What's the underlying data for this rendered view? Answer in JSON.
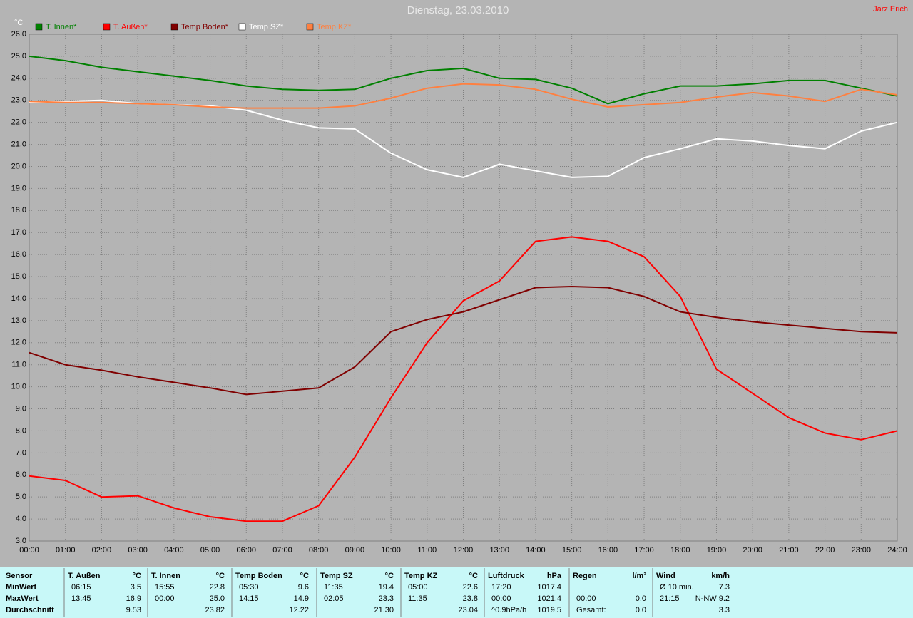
{
  "chart_data": {
    "type": "line",
    "title": "Dienstag, 23.03.2010",
    "annotation": "Jarz Erich",
    "y_label": "°C",
    "x": [
      0,
      1,
      2,
      3,
      4,
      5,
      6,
      7,
      8,
      9,
      10,
      11,
      12,
      13,
      14,
      15,
      16,
      17,
      18,
      19,
      20,
      21,
      22,
      23,
      24
    ],
    "xlim": [
      0,
      24
    ],
    "xticks": [
      {
        "value": 0,
        "label": "00:00"
      },
      {
        "value": 1,
        "label": "01:00"
      },
      {
        "value": 2,
        "label": "02:00"
      },
      {
        "value": 3,
        "label": "03:00"
      },
      {
        "value": 4,
        "label": "04:00"
      },
      {
        "value": 5,
        "label": "05:00"
      },
      {
        "value": 6,
        "label": "06:00"
      },
      {
        "value": 7,
        "label": "07:00"
      },
      {
        "value": 8,
        "label": "08:00"
      },
      {
        "value": 9,
        "label": "09:00"
      },
      {
        "value": 10,
        "label": "10:00"
      },
      {
        "value": 11,
        "label": "11:00"
      },
      {
        "value": 12,
        "label": "12:00"
      },
      {
        "value": 13,
        "label": "13:00"
      },
      {
        "value": 14,
        "label": "14:00"
      },
      {
        "value": 15,
        "label": "15:00"
      },
      {
        "value": 16,
        "label": "16:00"
      },
      {
        "value": 17,
        "label": "17:00"
      },
      {
        "value": 18,
        "label": "18:00"
      },
      {
        "value": 19,
        "label": "19:00"
      },
      {
        "value": 20,
        "label": "20:00"
      },
      {
        "value": 21,
        "label": "21:00"
      },
      {
        "value": 22,
        "label": "22:00"
      },
      {
        "value": 23,
        "label": "23:00"
      },
      {
        "value": 24,
        "label": "24:00"
      }
    ],
    "ylim": [
      3,
      26
    ],
    "yticks": [
      {
        "value": 3,
        "label": "3.0"
      },
      {
        "value": 4,
        "label": "4.0"
      },
      {
        "value": 5,
        "label": "5.0"
      },
      {
        "value": 6,
        "label": "6.0"
      },
      {
        "value": 7,
        "label": "7.0"
      },
      {
        "value": 8,
        "label": "8.0"
      },
      {
        "value": 9,
        "label": "9.0"
      },
      {
        "value": 10,
        "label": "10.0"
      },
      {
        "value": 11,
        "label": "11.0"
      },
      {
        "value": 12,
        "label": "12.0"
      },
      {
        "value": 13,
        "label": "13.0"
      },
      {
        "value": 14,
        "label": "14.0"
      },
      {
        "value": 15,
        "label": "15.0"
      },
      {
        "value": 16,
        "label": "16.0"
      },
      {
        "value": 17,
        "label": "17.0"
      },
      {
        "value": 18,
        "label": "18.0"
      },
      {
        "value": 19,
        "label": "19.0"
      },
      {
        "value": 20,
        "label": "20.0"
      },
      {
        "value": 21,
        "label": "21.0"
      },
      {
        "value": 22,
        "label": "22.0"
      },
      {
        "value": 23,
        "label": "23.0"
      },
      {
        "value": 24,
        "label": "24.0"
      },
      {
        "value": 25,
        "label": "25.0"
      },
      {
        "value": 26,
        "label": "26.0"
      }
    ],
    "grid": true,
    "series": [
      {
        "name": "T. Innen*",
        "color": "#008000",
        "values": [
          25.0,
          24.8,
          24.5,
          24.3,
          24.1,
          23.9,
          23.65,
          23.5,
          23.45,
          23.5,
          24.0,
          24.35,
          24.45,
          24.0,
          23.95,
          23.55,
          22.85,
          23.3,
          23.65,
          23.65,
          23.75,
          23.9,
          23.9,
          23.55,
          23.2
        ]
      },
      {
        "name": "T. Außen*",
        "color": "#ff0000",
        "values": [
          5.95,
          5.75,
          5.0,
          5.05,
          4.5,
          4.1,
          3.9,
          3.9,
          4.6,
          6.8,
          9.5,
          12.0,
          13.9,
          14.8,
          16.6,
          16.8,
          16.6,
          15.9,
          14.1,
          10.8,
          9.7,
          8.6,
          7.9,
          7.6,
          8.0
        ]
      },
      {
        "name": "Temp Boden*",
        "color": "#800000",
        "values": [
          11.55,
          11.0,
          10.75,
          10.45,
          10.2,
          9.95,
          9.65,
          9.8,
          9.95,
          10.9,
          12.5,
          13.05,
          13.4,
          13.95,
          14.5,
          14.55,
          14.5,
          14.1,
          13.4,
          13.15,
          12.95,
          12.8,
          12.65,
          12.5,
          12.45
        ]
      },
      {
        "name": "Temp SZ*",
        "color": "#ffffff",
        "values": [
          22.9,
          22.95,
          23.0,
          22.85,
          22.8,
          22.75,
          22.55,
          22.1,
          21.75,
          21.7,
          20.6,
          19.85,
          19.5,
          20.1,
          19.8,
          19.5,
          19.55,
          20.4,
          20.8,
          21.25,
          21.15,
          20.95,
          20.8,
          21.6,
          22.0
        ]
      },
      {
        "name": "Temp KZ*",
        "color": "#ff8040",
        "values": [
          22.95,
          22.9,
          22.9,
          22.85,
          22.8,
          22.7,
          22.65,
          22.65,
          22.65,
          22.75,
          23.1,
          23.55,
          23.75,
          23.7,
          23.5,
          23.05,
          22.7,
          22.8,
          22.9,
          23.15,
          23.35,
          23.2,
          22.95,
          23.5,
          23.25
        ]
      }
    ]
  },
  "table": {
    "row_header": "Sensor",
    "row_labels": [
      "MinWert",
      "MaxWert",
      "Durchschnitt"
    ],
    "groups": [
      {
        "header": "T. Außen",
        "unit": "°C",
        "rows": [
          [
            "06:15",
            "3.5"
          ],
          [
            "13:45",
            "16.9"
          ],
          [
            null,
            "9.53"
          ]
        ]
      },
      {
        "header": "T. Innen",
        "unit": "°C",
        "rows": [
          [
            "15:55",
            "22.8"
          ],
          [
            "00:00",
            "25.0"
          ],
          [
            null,
            "23.82"
          ]
        ]
      },
      {
        "header": "Temp Boden",
        "unit": "°C",
        "rows": [
          [
            "05:30",
            "9.6"
          ],
          [
            "14:15",
            "14.9"
          ],
          [
            null,
            "12.22"
          ]
        ]
      },
      {
        "header": "Temp SZ",
        "unit": "°C",
        "rows": [
          [
            "11:35",
            "19.4"
          ],
          [
            "02:05",
            "23.3"
          ],
          [
            null,
            "21.30"
          ]
        ]
      },
      {
        "header": "Temp KZ",
        "unit": "°C",
        "rows": [
          [
            "05:00",
            "22.6"
          ],
          [
            "11:35",
            "23.8"
          ],
          [
            null,
            "23.04"
          ]
        ]
      },
      {
        "header": "Luftdruck",
        "unit": "hPa",
        "rows": [
          [
            "17:20",
            "1017.4"
          ],
          [
            "00:00",
            "1021.4"
          ],
          [
            "^0.9hPa/h",
            "1019.5"
          ]
        ]
      },
      {
        "header": "Regen",
        "unit": "l/m²",
        "rows": [
          [
            null,
            null
          ],
          [
            "00:00",
            "0.0"
          ],
          [
            "Gesamt:",
            "0.0"
          ]
        ]
      },
      {
        "header": "Wind",
        "unit": "km/h",
        "rows": [
          [
            "Ø 10 min.",
            "7.3"
          ],
          [
            "21:15",
            "N-NW 9.2"
          ],
          [
            null,
            "3.3"
          ]
        ]
      }
    ]
  }
}
